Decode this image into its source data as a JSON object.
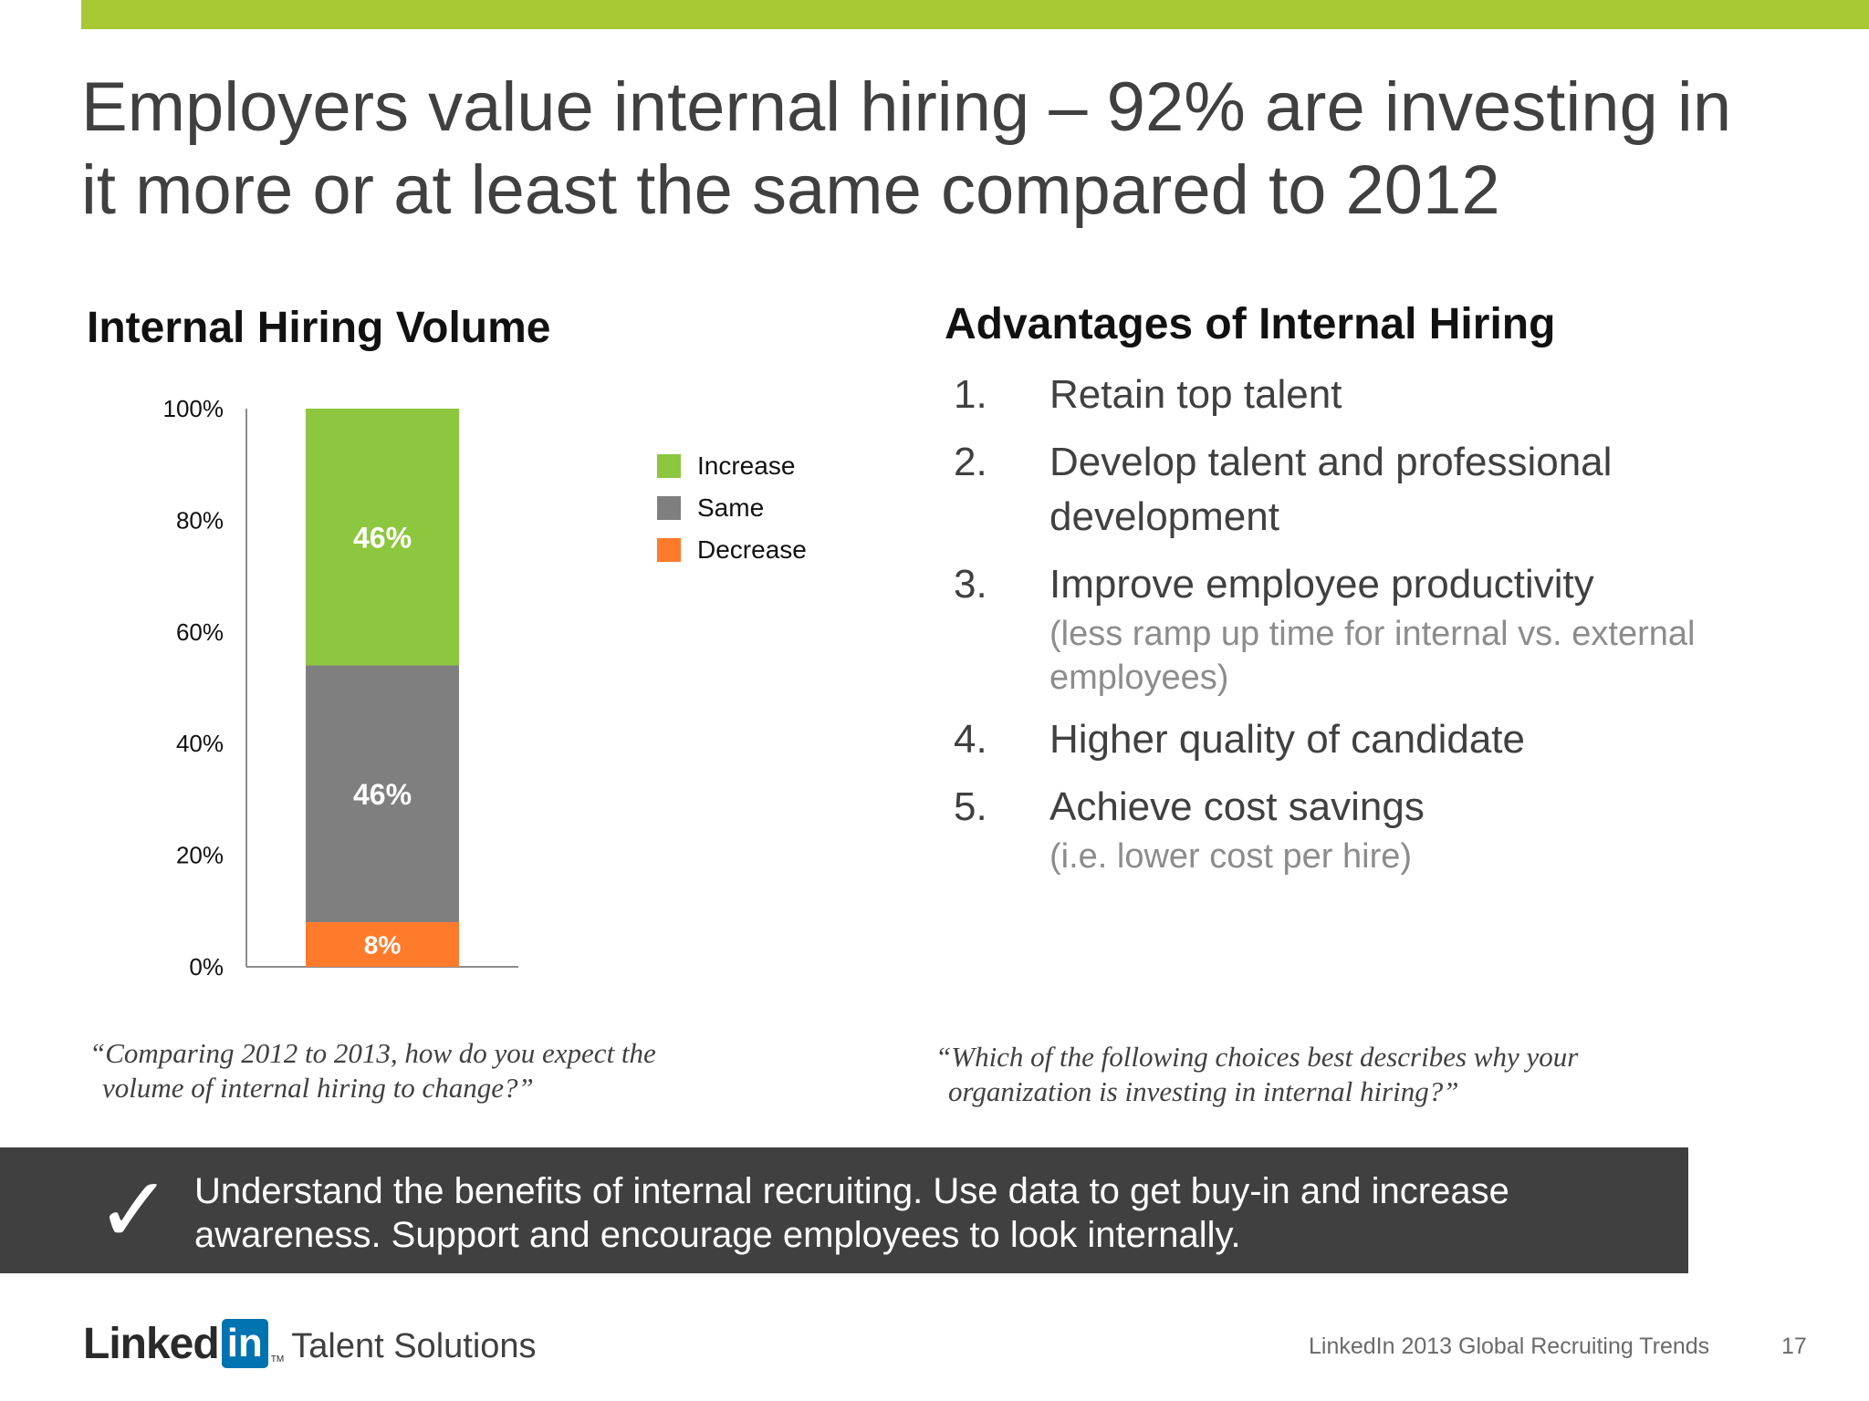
{
  "header": {
    "title_line1": "Employers value internal hiring – 92% are investing in",
    "title_line2": "it more or at least the same compared to 2012",
    "accent_color": "#a8c934"
  },
  "chart_section": {
    "title": "Internal Hiring Volume",
    "question_line1": "“Comparing 2012 to 2013, how do you expect the",
    "question_line2": "volume of internal hiring to change?”"
  },
  "chart_data": {
    "type": "bar",
    "stacked": true,
    "categories": [
      ""
    ],
    "series": [
      {
        "name": "Decrease",
        "values": [
          8
        ],
        "label": "8%",
        "color": "#ff7b2c"
      },
      {
        "name": "Same",
        "values": [
          46
        ],
        "label": "46%",
        "color": "#7f7f7f"
      },
      {
        "name": "Increase",
        "values": [
          46
        ],
        "label": "46%",
        "color": "#8dc63f"
      }
    ],
    "y_ticks": [
      "0%",
      "20%",
      "40%",
      "60%",
      "80%",
      "100%"
    ],
    "ylim": [
      0,
      100
    ],
    "legend_position": "right",
    "legend_order": [
      "Increase",
      "Same",
      "Decrease"
    ],
    "grid": false
  },
  "advantages": {
    "title": "Advantages of Internal Hiring",
    "items": [
      {
        "num": "1.",
        "text": "Retain top talent",
        "note": ""
      },
      {
        "num": "2.",
        "text": "Develop talent and professional development",
        "note": ""
      },
      {
        "num": "3.",
        "text": "Improve employee productivity",
        "note": "(less ramp up time for internal vs. external employees)"
      },
      {
        "num": "4.",
        "text": "Higher quality of candidate",
        "note": ""
      },
      {
        "num": "5.",
        "text": "Achieve cost savings",
        "note": "(i.e. lower cost per hire)"
      }
    ],
    "question_line1": "“Which of the following choices best describes why your",
    "question_line2": "organization is investing in internal hiring?”"
  },
  "callout": {
    "icon": "checkmark-icon",
    "glyph": "✓",
    "line1": "Understand the benefits of internal recruiting. Use data to get buy-in and increase",
    "line2": "awareness. Support and encourage employees to look internally."
  },
  "footer": {
    "logo_linked": "Linked",
    "logo_in": "in",
    "logo_tm": "TM",
    "logo_suffix": "Talent Solutions",
    "logo_color": "#0073b1",
    "report_name": "LinkedIn 2013 Global Recruiting Trends",
    "page_number": "17"
  }
}
